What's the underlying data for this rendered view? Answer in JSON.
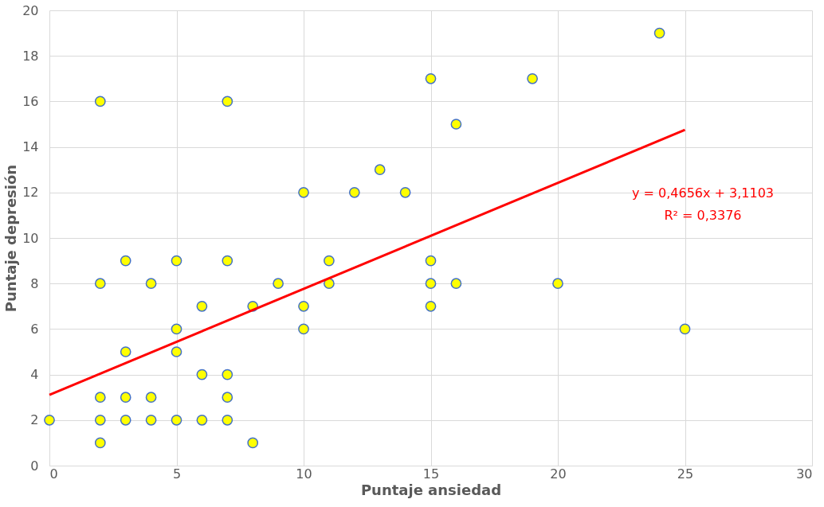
{
  "chart_data": {
    "type": "scatter",
    "xlabel": "Puntaje ansiedad",
    "ylabel": "Puntaje depresión",
    "xlim": [
      0,
      30
    ],
    "xticks": [
      0,
      5,
      10,
      15,
      20,
      25,
      30
    ],
    "ylim": [
      0,
      20
    ],
    "yticks": [
      0,
      2,
      4,
      6,
      8,
      10,
      12,
      14,
      16,
      18,
      20
    ],
    "grid": true,
    "legend": false,
    "marker": "circle",
    "series": [
      {
        "type": "scatter",
        "color": "#ffff00",
        "x": [
          0,
          2,
          2,
          2,
          2,
          2,
          3,
          3,
          3,
          3,
          4,
          4,
          4,
          5,
          5,
          5,
          5,
          6,
          6,
          6,
          7,
          7,
          7,
          7,
          7,
          8,
          8,
          9,
          10,
          10,
          10,
          11,
          11,
          12,
          13,
          14,
          15,
          15,
          15,
          15,
          16,
          16,
          19,
          20,
          24,
          25
        ],
        "values": [
          2,
          16,
          8,
          3,
          2,
          1,
          9,
          5,
          3,
          2,
          8,
          3,
          2,
          9,
          6,
          5,
          2,
          7,
          4,
          2,
          16,
          9,
          4,
          3,
          2,
          7,
          1,
          8,
          12,
          7,
          6,
          9,
          8,
          12,
          13,
          12,
          17,
          9,
          8,
          7,
          15,
          8,
          17,
          8,
          19,
          6
        ]
      },
      {
        "type": "line",
        "color": "#ff0000",
        "line_style": "solid",
        "marker": "none",
        "x": [
          0,
          25
        ],
        "values": [
          3.11,
          14.75
        ]
      }
    ],
    "annotations": [
      "y = 0,4656x + 3,1103",
      "R² = 0,3376"
    ]
  }
}
